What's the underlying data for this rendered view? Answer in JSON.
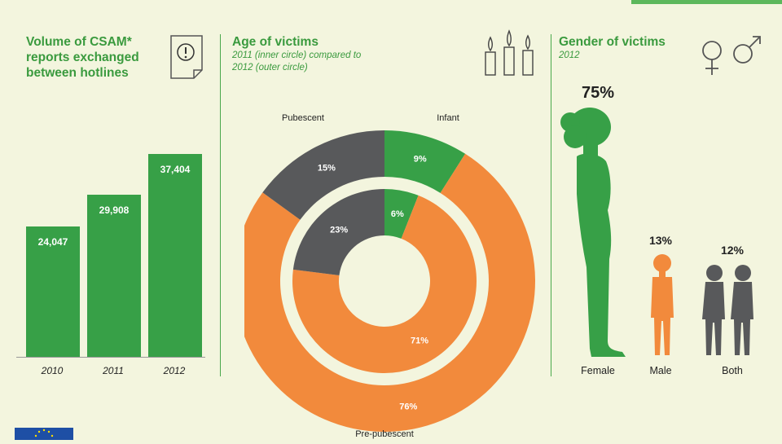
{
  "volume": {
    "title_lines": [
      "Volume of CSAM*",
      "reports exchanged",
      "between hotlines"
    ],
    "chart_data": {
      "type": "bar",
      "categories": [
        "2010",
        "2011",
        "2012"
      ],
      "values": [
        24047,
        29908,
        37404
      ],
      "value_labels": [
        "24,047",
        "29,908",
        "37,404"
      ],
      "ylim": [
        0,
        45000
      ],
      "title": "Volume of CSAM* reports exchanged between hotlines"
    }
  },
  "age": {
    "title": "Age of victims",
    "subtitle_lines": [
      "2011 (inner circle) compared to",
      "2012 (outer circle)"
    ],
    "chart_data": {
      "type": "pie",
      "categories": [
        "Infant",
        "Pre-pubescent",
        "Pubescent"
      ],
      "series": [
        {
          "name": "2011 (inner circle)",
          "values": [
            6,
            71,
            23
          ],
          "labels": [
            "6%",
            "71%",
            "23%"
          ]
        },
        {
          "name": "2012 (outer circle)",
          "values": [
            9,
            76,
            15
          ],
          "labels": [
            "9%",
            "76%",
            "15%"
          ]
        }
      ],
      "colors": [
        "#37a047",
        "#f28a3c",
        "#58595b"
      ]
    }
  },
  "gender": {
    "title": "Gender of victims",
    "subtitle": "2012",
    "chart_data": {
      "type": "bar",
      "categories": [
        "Female",
        "Male",
        "Both"
      ],
      "values": [
        75,
        13,
        12
      ],
      "value_labels": [
        "75%",
        "13%",
        "12%"
      ],
      "colors": [
        "#37a047",
        "#f28a3c",
        "#58595b"
      ]
    }
  },
  "icons": {
    "document": "warning-document-icon",
    "candles": "candles-icon",
    "gender": "gender-symbols-icon",
    "flag": "eu-flag-icon"
  },
  "colors": {
    "green": "#37a047",
    "orange": "#f28a3c",
    "grey": "#58595b",
    "background": "#f3f5de",
    "title": "#3a9a3e"
  }
}
